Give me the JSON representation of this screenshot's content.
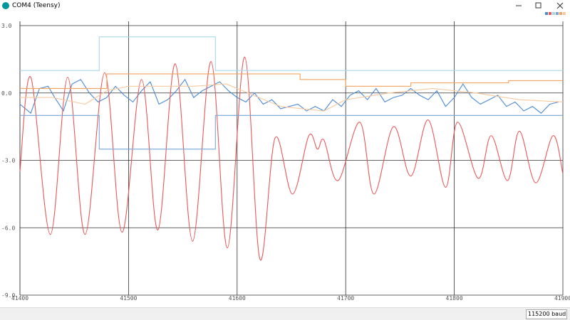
{
  "window_title": "COM4 (Teensy)",
  "baud": "115200 baud",
  "chart_data": {
    "type": "line",
    "xlim": [
      41400,
      41900
    ],
    "xticks": [
      41400,
      41500,
      41600,
      41700,
      41800,
      41900
    ],
    "ylim": [
      -9,
      3
    ],
    "yticks": [
      {
        "value": 3,
        "label": "3.0"
      },
      {
        "value": 0,
        "label": "0.0"
      },
      {
        "value": -3,
        "label": "-3.0"
      },
      {
        "value": -6,
        "label": "-6.0"
      },
      {
        "value": -9,
        "label": "-9.0"
      }
    ],
    "grid": true,
    "series": [
      {
        "color": "#4a8ad4",
        "smooth": false,
        "x": [
          41400,
          41410,
          41418,
          41426,
          41432,
          41440,
          41448,
          41456,
          41464,
          41472,
          41480,
          41488,
          41496,
          41504,
          41512,
          41520,
          41528,
          41536,
          41544,
          41552,
          41560,
          41568,
          41576,
          41584,
          41592,
          41600,
          41608,
          41616,
          41624,
          41632,
          41640,
          41648,
          41656,
          41664,
          41672,
          41680,
          41688,
          41696,
          41704,
          41712,
          41720,
          41728,
          41736,
          41744,
          41752,
          41760,
          41768,
          41776,
          41784,
          41792,
          41800,
          41808,
          41816,
          41824,
          41832,
          41840,
          41848,
          41856,
          41864,
          41872,
          41880,
          41888,
          41896
        ],
        "values": [
          -0.5,
          -0.9,
          0.2,
          0.3,
          -0.2,
          -0.8,
          0.4,
          0.6,
          0.0,
          -0.4,
          -0.2,
          0.3,
          -0.1,
          -0.4,
          0.1,
          0.5,
          -0.5,
          -0.3,
          0.1,
          0.6,
          -0.2,
          0.1,
          0.3,
          0.5,
          0.1,
          -0.2,
          -0.4,
          0.0,
          -0.5,
          -0.3,
          -0.7,
          -0.6,
          -0.5,
          -0.8,
          -0.6,
          -0.8,
          -0.3,
          -0.6,
          -0.1,
          0.1,
          -0.3,
          0.2,
          -0.4,
          -0.2,
          -0.1,
          0.2,
          -0.1,
          -0.3,
          0.1,
          -0.6,
          -0.2,
          0.4,
          -0.2,
          -0.5,
          -0.3,
          -0.1,
          -0.6,
          -0.4,
          -0.8,
          -0.6,
          -0.9,
          -0.5,
          -0.4
        ]
      },
      {
        "color": "#e8575a",
        "smooth": true,
        "x": [
          41400,
          41410,
          41428,
          41444,
          41460,
          41478,
          41494,
          41512,
          41527,
          41543,
          41559,
          41576,
          41591,
          41607,
          41621,
          41635,
          41651,
          41666,
          41674,
          41680,
          41693,
          41713,
          41726,
          41744,
          41760,
          41776,
          41792,
          41803,
          41822,
          41834,
          41849,
          41860,
          41875,
          41891,
          41900
        ],
        "values": [
          -3.5,
          0.7,
          -6.3,
          0.7,
          -6.3,
          0.9,
          -6.2,
          0.6,
          -6.1,
          1.3,
          -6.6,
          1.4,
          -6.9,
          1.6,
          -7.4,
          -2.0,
          -4.5,
          -1.9,
          -2.5,
          -2.1,
          -3.9,
          -1.3,
          -4.5,
          -1.5,
          -3.7,
          -1.2,
          -4.2,
          -1.3,
          -3.8,
          -1.9,
          -3.9,
          -1.7,
          -4.0,
          -1.9,
          -3.6
        ]
      },
      {
        "color": "#a6d8e8",
        "smooth": false,
        "x": [
          41400,
          41473,
          41473,
          41580,
          41580,
          41900
        ],
        "values": [
          1,
          1,
          2.5,
          2.5,
          1,
          1
        ]
      },
      {
        "color": "#7aa6d6",
        "smooth": false,
        "x": [
          41400,
          41473,
          41473,
          41580,
          41580,
          41900
        ],
        "values": [
          -1,
          -1,
          -2.5,
          -2.5,
          -1,
          -1
        ]
      },
      {
        "color": "#f5a25d",
        "smooth": false,
        "x": [
          41400,
          41480,
          41480,
          41658,
          41658,
          41700,
          41700,
          41760,
          41760,
          41850,
          41850,
          41900
        ],
        "values": [
          0.2,
          0.2,
          0.85,
          0.85,
          0.6,
          0.6,
          0.3,
          0.3,
          0.45,
          0.45,
          0.55,
          0.55
        ]
      },
      {
        "color": "#f7c9a0",
        "smooth": false,
        "x": [
          41400,
          41430,
          41460,
          41480,
          41500,
          41530,
          41560,
          41590,
          41620,
          41640,
          41660,
          41680,
          41700,
          41740,
          41780,
          41820,
          41860,
          41900
        ],
        "values": [
          -0.2,
          -0.2,
          -0.5,
          0.1,
          0.3,
          0.3,
          0.3,
          0.4,
          -0.2,
          -0.6,
          -0.7,
          -0.8,
          -0.3,
          0.0,
          0.2,
          0.0,
          -0.3,
          -0.4
        ]
      }
    ]
  }
}
